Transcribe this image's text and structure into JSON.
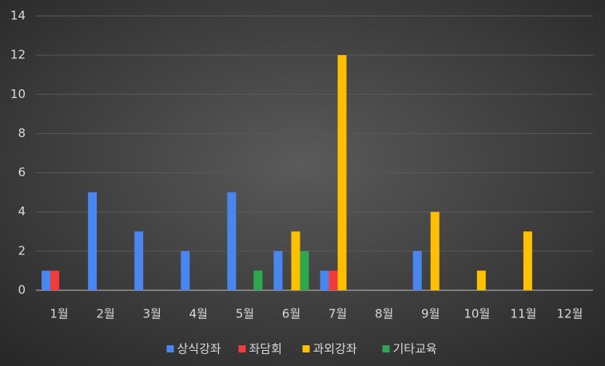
{
  "chart_data": {
    "type": "bar",
    "categories": [
      "1월",
      "2월",
      "3월",
      "4월",
      "5월",
      "6월",
      "7월",
      "8월",
      "9월",
      "10월",
      "11월",
      "12월"
    ],
    "series": [
      {
        "name": "상식강좌",
        "color": "#4a86f0",
        "values": [
          1,
          5,
          3,
          2,
          5,
          2,
          1,
          0,
          2,
          0,
          0,
          0
        ]
      },
      {
        "name": "좌담회",
        "color": "#f53a3a",
        "values": [
          1,
          0,
          0,
          0,
          0,
          0,
          1,
          0,
          0,
          0,
          0,
          0
        ]
      },
      {
        "name": "과외강좌",
        "color": "#ffc000",
        "values": [
          0,
          0,
          0,
          0,
          0,
          3,
          12,
          0,
          4,
          1,
          3,
          0
        ]
      },
      {
        "name": "기타교육",
        "color": "#2ea84f",
        "values": [
          0,
          0,
          0,
          0,
          1,
          2,
          0,
          0,
          0,
          0,
          0,
          0
        ]
      }
    ],
    "ylim": [
      0,
      14
    ],
    "yticks": [
      0,
      2,
      4,
      6,
      8,
      10,
      12,
      14
    ],
    "grid": true,
    "legend": "bottom"
  }
}
